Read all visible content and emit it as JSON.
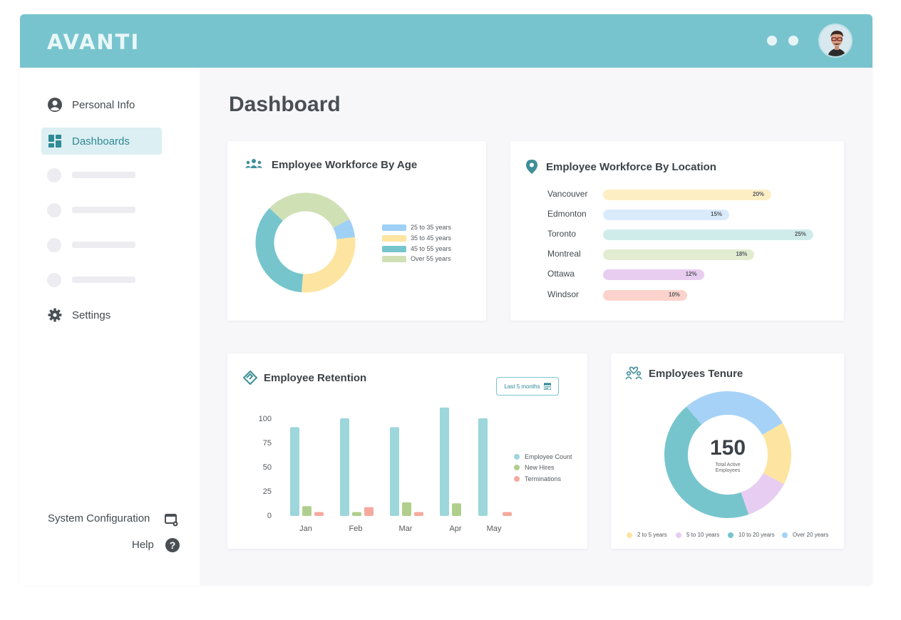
{
  "app": {
    "logo": "AVANTI"
  },
  "sidebar": {
    "items": [
      {
        "label": "Personal Info",
        "icon": "user-circle-icon"
      },
      {
        "label": "Dashboards",
        "icon": "dashboard-icon",
        "active": true
      },
      {
        "label": "Settings",
        "icon": "gear-icon"
      }
    ],
    "system_configuration": "System Configuration",
    "help": "Help",
    "help_glyph": "?"
  },
  "main": {
    "title": "Dashboard"
  },
  "age_card": {
    "title": "Employee Workforce By Age",
    "icon": "team-icon",
    "legend": [
      "25 to 35 years",
      "35 to 45 years",
      "45 to 55 years",
      "Over 55 years"
    ],
    "colors": [
      "#9fd0f5",
      "#fde5a1",
      "#76c5cd",
      "#cfe0b5"
    ]
  },
  "location_card": {
    "title": "Employee Workforce By Location",
    "icon": "map-pin-icon",
    "rows": [
      {
        "city": "Vancouver",
        "pct": 20,
        "label": "20%",
        "color": "#fdeec4"
      },
      {
        "city": "Edmonton",
        "pct": 15,
        "label": "15%",
        "color": "#d9ebfb"
      },
      {
        "city": "Toronto",
        "pct": 25,
        "label": "25%",
        "color": "#cfeceb"
      },
      {
        "city": "Montreal",
        "pct": 18,
        "label": "18%",
        "color": "#e2ecd0"
      },
      {
        "city": "Ottawa",
        "pct": 12,
        "label": "12%",
        "color": "#e8cdf0"
      },
      {
        "city": "Windsor",
        "pct": 10,
        "label": "10%",
        "color": "#fcd3cc"
      }
    ]
  },
  "retention_card": {
    "title": "Employee Retention",
    "icon": "handshake-icon",
    "filter_label": "Last 5 months",
    "filter_icon": "calendar-icon"
  },
  "tenure_card": {
    "title": "Employees Tenure",
    "icon": "people-heart-icon",
    "total": "150",
    "total_label_1": "Total Active",
    "total_label_2": "Employees",
    "legend": [
      "2 to 5 years",
      "5 to 10 years",
      "10 to 20 years",
      "Over 20 years"
    ],
    "colors": [
      "#fde5a1",
      "#e6cdf1",
      "#76c5cd",
      "#a6d2f7"
    ]
  },
  "chart_data": [
    {
      "type": "pie",
      "categories": [
        "25 to 35 years",
        "35 to 45 years",
        "45 to 55 years",
        "Over 55 years"
      ],
      "values": [
        6,
        28,
        36,
        30
      ]
    },
    {
      "type": "bar",
      "categories": [
        "Vancouver",
        "Edmonton",
        "Toronto",
        "Montreal",
        "Ottawa",
        "Windsor"
      ],
      "values": [
        20,
        15,
        25,
        18,
        12,
        10
      ]
    },
    {
      "type": "bar",
      "categories": [
        "Jan",
        "Feb",
        "Mar",
        "Apr",
        "May"
      ],
      "series": [
        {
          "name": "Employee Count",
          "values": [
            91,
            100,
            91,
            111,
            100
          ],
          "color": "#9dd6db"
        },
        {
          "name": "New Hires",
          "values": [
            10,
            4,
            14,
            13,
            0
          ],
          "color": "#b0cf8d"
        },
        {
          "name": "Terminations",
          "values": [
            4,
            9,
            4,
            0,
            4
          ],
          "color": "#f6a99d"
        }
      ],
      "yticks": [
        "100",
        "75",
        "50",
        "25",
        "0"
      ],
      "ylim": [
        0,
        115
      ]
    },
    {
      "type": "pie",
      "categories": [
        "2 to 5 years",
        "5 to 10 years",
        "10 to 20 years",
        "Over 20 years"
      ],
      "values": [
        16,
        12,
        44,
        28
      ]
    }
  ]
}
